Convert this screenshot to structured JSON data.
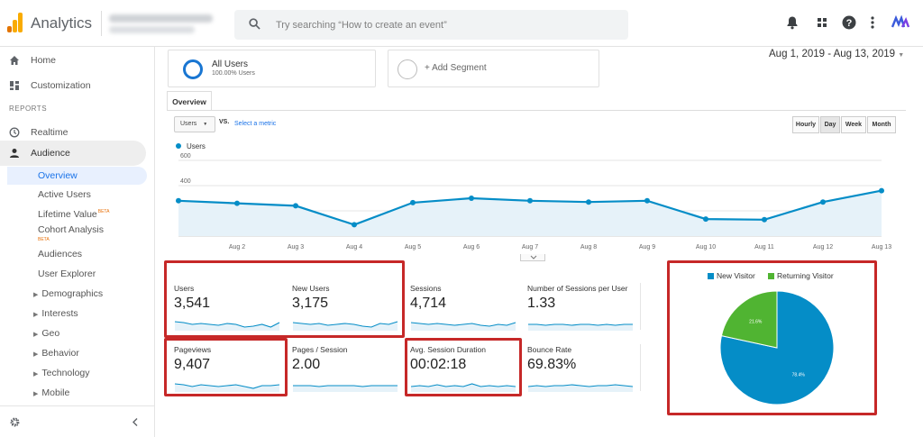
{
  "header": {
    "app_title": "Analytics",
    "search_placeholder": "Try searching “How to create an event”",
    "icons": [
      "bell-icon",
      "apps-grid-icon",
      "help-icon",
      "more-vert-icon",
      "user-avatar"
    ]
  },
  "sidebar": {
    "home": "Home",
    "customization": "Customization",
    "reports_label": "REPORTS",
    "realtime": "Realtime",
    "audience": "Audience",
    "audience_items": [
      {
        "label": "Overview",
        "active": true
      },
      {
        "label": "Active Users"
      },
      {
        "label": "Lifetime Value",
        "beta": "BETA"
      },
      {
        "label": "Cohort Analysis",
        "beta": "BETA"
      },
      {
        "label": "Audiences"
      },
      {
        "label": "User Explorer"
      },
      {
        "label": "Demographics",
        "expandable": true
      },
      {
        "label": "Interests",
        "expandable": true
      },
      {
        "label": "Geo",
        "expandable": true
      },
      {
        "label": "Behavior",
        "expandable": true
      },
      {
        "label": "Technology",
        "expandable": true
      },
      {
        "label": "Mobile",
        "expandable": true
      }
    ]
  },
  "segments": {
    "all_users": "All Users",
    "all_users_pct": "100.00% Users",
    "add_segment": "+ Add Segment"
  },
  "date_range": "Aug 1, 2019 - Aug 13, 2019",
  "tab": "Overview",
  "controls": {
    "metric": "Users",
    "vs": "VS.",
    "select_metric": "Select a metric",
    "granularity": [
      "Hourly",
      "Day",
      "Week",
      "Month"
    ],
    "selected_granularity": "Day"
  },
  "chart_data": {
    "type": "line",
    "series": [
      {
        "name": "Users",
        "values": [
          280,
          260,
          240,
          90,
          265,
          300,
          280,
          270,
          280,
          135,
          130,
          270,
          360
        ],
        "color": "#058dc7"
      }
    ],
    "x": [
      "",
      "Aug 2",
      "Aug 3",
      "Aug 4",
      "Aug 5",
      "Aug 6",
      "Aug 7",
      "Aug 8",
      "Aug 9",
      "Aug 10",
      "Aug 11",
      "Aug 12",
      "Aug 13"
    ],
    "ylim": [
      0,
      600
    ],
    "yticks": [
      200,
      400,
      600
    ]
  },
  "metrics": [
    {
      "name": "Users",
      "value": "3,541"
    },
    {
      "name": "New Users",
      "value": "3,175"
    },
    {
      "name": "Sessions",
      "value": "4,714"
    },
    {
      "name": "Number of Sessions per User",
      "value": "1.33"
    },
    {
      "name": "Pageviews",
      "value": "9,407"
    },
    {
      "name": "Pages / Session",
      "value": "2.00"
    },
    {
      "name": "Avg. Session Duration",
      "value": "00:02:18"
    },
    {
      "name": "Bounce Rate",
      "value": "69.83%"
    }
  ],
  "pie": {
    "type": "pie",
    "legend": [
      "New Visitor",
      "Returning Visitor"
    ],
    "values": [
      78.4,
      21.6
    ],
    "labels": [
      "78.4%",
      "21.6%"
    ],
    "colors": [
      "#058dc7",
      "#50b432"
    ]
  }
}
